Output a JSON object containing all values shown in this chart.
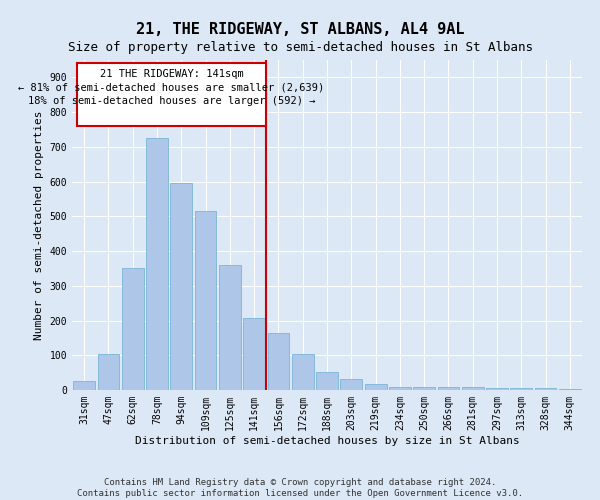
{
  "title": "21, THE RIDGEWAY, ST ALBANS, AL4 9AL",
  "subtitle": "Size of property relative to semi-detached houses in St Albans",
  "xlabel": "Distribution of semi-detached houses by size in St Albans",
  "ylabel": "Number of semi-detached properties",
  "footer_line1": "Contains HM Land Registry data © Crown copyright and database right 2024.",
  "footer_line2": "Contains public sector information licensed under the Open Government Licence v3.0.",
  "categories": [
    "31sqm",
    "47sqm",
    "62sqm",
    "78sqm",
    "94sqm",
    "109sqm",
    "125sqm",
    "141sqm",
    "156sqm",
    "172sqm",
    "188sqm",
    "203sqm",
    "219sqm",
    "234sqm",
    "250sqm",
    "266sqm",
    "281sqm",
    "297sqm",
    "313sqm",
    "328sqm",
    "344sqm"
  ],
  "values": [
    25,
    105,
    350,
    725,
    595,
    515,
    360,
    207,
    165,
    103,
    53,
    33,
    18,
    10,
    10,
    10,
    8,
    5,
    5,
    5,
    3
  ],
  "bar_color": "#aec6e8",
  "bar_edge_color": "#6aaed6",
  "highlight_index": 7,
  "highlight_line_color": "#cc0000",
  "box_text_line1": "21 THE RIDGEWAY: 141sqm",
  "box_text_line2": "← 81% of semi-detached houses are smaller (2,639)",
  "box_text_line3": "18% of semi-detached houses are larger (592) →",
  "box_color": "#cc0000",
  "ylim": [
    0,
    950
  ],
  "yticks": [
    0,
    100,
    200,
    300,
    400,
    500,
    600,
    700,
    800,
    900
  ],
  "background_color": "#dce8f5",
  "plot_background": "#dce8f5",
  "grid_color": "#ffffff",
  "title_fontsize": 11,
  "subtitle_fontsize": 9,
  "axis_label_fontsize": 8,
  "tick_fontsize": 7,
  "footer_fontsize": 6.5
}
